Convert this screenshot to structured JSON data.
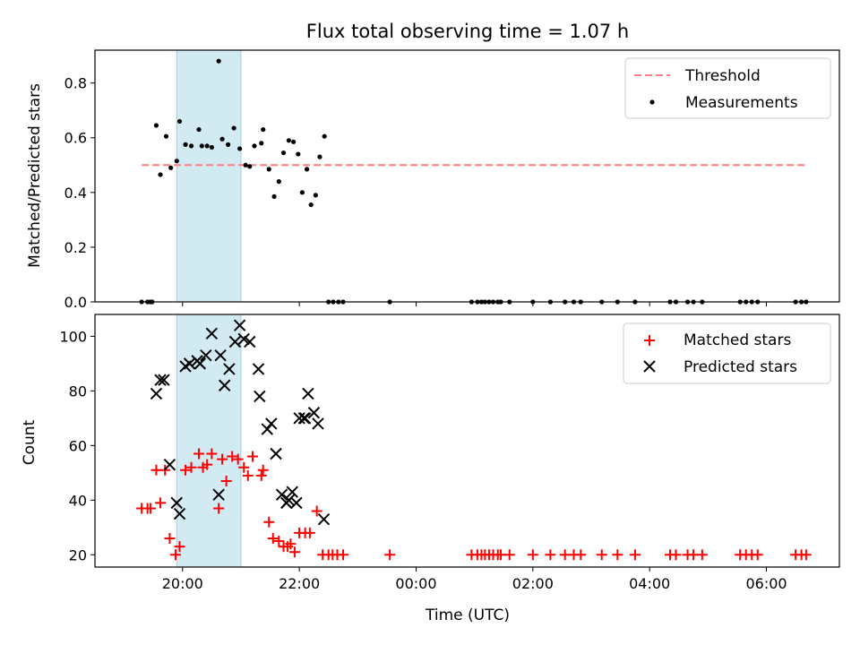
{
  "chart_data": {
    "title": "Flux total observing time = 1.07 h",
    "xlabel": "Time (UTC)",
    "x_ticks": [
      "20:00",
      "22:00",
      "00:00",
      "02:00",
      "04:00",
      "06:00"
    ],
    "x_tick_hours": [
      20,
      22,
      24,
      26,
      28,
      30
    ],
    "xlim_hours": [
      18.5,
      31.25
    ],
    "shaded_interval_hours": [
      19.9,
      21.0
    ],
    "shade_color": "#add8e6",
    "panels": [
      {
        "type": "scatter",
        "ylabel": "Matched/Predicted stars",
        "ylim": [
          0,
          0.92
        ],
        "y_ticks": [
          "0.0",
          "0.2",
          "0.4",
          "0.6",
          "0.8"
        ],
        "y_tick_values": [
          0,
          0.2,
          0.4,
          0.6,
          0.8
        ],
        "threshold": {
          "name": "Threshold",
          "value": 0.5,
          "color": "#ff7f7f",
          "from_hour": 19.3,
          "to_hour": 30.7
        },
        "legend": [
          "Threshold",
          "Measurements"
        ],
        "series": [
          {
            "name": "Measurements",
            "marker": "dot",
            "color": "#000000",
            "points": [
              [
                19.3,
                0
              ],
              [
                19.4,
                0
              ],
              [
                19.45,
                0
              ],
              [
                19.48,
                0
              ],
              [
                19.55,
                0.645
              ],
              [
                19.62,
                0.465
              ],
              [
                19.72,
                0.605
              ],
              [
                19.8,
                0.49
              ],
              [
                19.9,
                0.515
              ],
              [
                19.95,
                0.66
              ],
              [
                20.05,
                0.575
              ],
              [
                20.15,
                0.57
              ],
              [
                20.28,
                0.63
              ],
              [
                20.33,
                0.57
              ],
              [
                20.42,
                0.57
              ],
              [
                20.5,
                0.565
              ],
              [
                20.62,
                0.88
              ],
              [
                20.68,
                0.595
              ],
              [
                20.78,
                0.575
              ],
              [
                20.88,
                0.635
              ],
              [
                20.98,
                0.56
              ],
              [
                21.08,
                0.5
              ],
              [
                21.15,
                0.495
              ],
              [
                21.23,
                0.57
              ],
              [
                21.35,
                0.58
              ],
              [
                21.38,
                0.63
              ],
              [
                21.48,
                0.485
              ],
              [
                21.57,
                0.385
              ],
              [
                21.65,
                0.44
              ],
              [
                21.73,
                0.545
              ],
              [
                21.82,
                0.59
              ],
              [
                21.9,
                0.585
              ],
              [
                21.98,
                0.54
              ],
              [
                22.05,
                0.4
              ],
              [
                22.13,
                0.485
              ],
              [
                22.2,
                0.355
              ],
              [
                22.28,
                0.39
              ],
              [
                22.35,
                0.53
              ],
              [
                22.43,
                0.605
              ],
              [
                22.5,
                0
              ],
              [
                22.58,
                0
              ],
              [
                22.67,
                0
              ],
              [
                22.75,
                0
              ],
              [
                23.55,
                0
              ],
              [
                24.95,
                0
              ],
              [
                25.05,
                0
              ],
              [
                25.12,
                0
              ],
              [
                25.18,
                0
              ],
              [
                25.25,
                0
              ],
              [
                25.32,
                0
              ],
              [
                25.4,
                0
              ],
              [
                25.45,
                0
              ],
              [
                25.6,
                0
              ],
              [
                26.0,
                0
              ],
              [
                26.3,
                0
              ],
              [
                26.55,
                0
              ],
              [
                26.7,
                0
              ],
              [
                26.82,
                0
              ],
              [
                27.18,
                0
              ],
              [
                27.45,
                0
              ],
              [
                27.75,
                0
              ],
              [
                28.35,
                0
              ],
              [
                28.45,
                0
              ],
              [
                28.65,
                0
              ],
              [
                28.75,
                0
              ],
              [
                28.9,
                0
              ],
              [
                29.55,
                0
              ],
              [
                29.65,
                0
              ],
              [
                29.75,
                0
              ],
              [
                29.85,
                0
              ],
              [
                30.5,
                0
              ],
              [
                30.6,
                0
              ],
              [
                30.68,
                0
              ]
            ]
          }
        ]
      },
      {
        "type": "scatter",
        "ylabel": "Count",
        "ylim": [
          15.5,
          108
        ],
        "y_ticks": [
          "20",
          "40",
          "60",
          "80",
          "100"
        ],
        "y_tick_values": [
          20,
          40,
          60,
          80,
          100
        ],
        "legend": [
          "Matched stars",
          "Predicted stars"
        ],
        "series": [
          {
            "name": "Matched stars",
            "marker": "plus",
            "color": "#ff0000",
            "points": [
              [
                19.3,
                37
              ],
              [
                19.4,
                37
              ],
              [
                19.45,
                37
              ],
              [
                19.55,
                51
              ],
              [
                19.62,
                39
              ],
              [
                19.7,
                51
              ],
              [
                19.78,
                26
              ],
              [
                19.88,
                20
              ],
              [
                19.95,
                23
              ],
              [
                20.05,
                51
              ],
              [
                20.15,
                52
              ],
              [
                20.28,
                57
              ],
              [
                20.35,
                52
              ],
              [
                20.42,
                53
              ],
              [
                20.5,
                57
              ],
              [
                20.62,
                37
              ],
              [
                20.68,
                55
              ],
              [
                20.75,
                47
              ],
              [
                20.85,
                56
              ],
              [
                20.95,
                55
              ],
              [
                21.05,
                52
              ],
              [
                21.12,
                49
              ],
              [
                21.2,
                56
              ],
              [
                21.35,
                49
              ],
              [
                21.38,
                51
              ],
              [
                21.48,
                32
              ],
              [
                21.55,
                26
              ],
              [
                21.65,
                25
              ],
              [
                21.73,
                23
              ],
              [
                21.8,
                23
              ],
              [
                21.85,
                24
              ],
              [
                21.92,
                21
              ],
              [
                22.0,
                28
              ],
              [
                22.1,
                28
              ],
              [
                22.18,
                28
              ],
              [
                22.3,
                36
              ],
              [
                22.4,
                20
              ],
              [
                22.5,
                20
              ],
              [
                22.57,
                20
              ],
              [
                22.65,
                20
              ],
              [
                22.75,
                20
              ],
              [
                23.55,
                20
              ],
              [
                24.95,
                20
              ],
              [
                25.05,
                20
              ],
              [
                25.12,
                20
              ],
              [
                25.18,
                20
              ],
              [
                25.25,
                20
              ],
              [
                25.32,
                20
              ],
              [
                25.4,
                20
              ],
              [
                25.45,
                20
              ],
              [
                25.6,
                20
              ],
              [
                26.0,
                20
              ],
              [
                26.3,
                20
              ],
              [
                26.55,
                20
              ],
              [
                26.7,
                20
              ],
              [
                26.82,
                20
              ],
              [
                27.18,
                20
              ],
              [
                27.45,
                20
              ],
              [
                27.75,
                20
              ],
              [
                28.35,
                20
              ],
              [
                28.45,
                20
              ],
              [
                28.65,
                20
              ],
              [
                28.75,
                20
              ],
              [
                28.9,
                20
              ],
              [
                29.55,
                20
              ],
              [
                29.65,
                20
              ],
              [
                29.75,
                20
              ],
              [
                29.85,
                20
              ],
              [
                30.5,
                20
              ],
              [
                30.6,
                20
              ],
              [
                30.68,
                20
              ]
            ]
          },
          {
            "name": "Predicted stars",
            "marker": "x",
            "color": "#000000",
            "points": [
              [
                19.55,
                79
              ],
              [
                19.62,
                84
              ],
              [
                19.68,
                84
              ],
              [
                19.78,
                53
              ],
              [
                19.9,
                39
              ],
              [
                19.95,
                35
              ],
              [
                20.05,
                89
              ],
              [
                20.12,
                90
              ],
              [
                20.25,
                91
              ],
              [
                20.3,
                90
              ],
              [
                20.4,
                93
              ],
              [
                20.5,
                101
              ],
              [
                20.62,
                42
              ],
              [
                20.65,
                93
              ],
              [
                20.72,
                82
              ],
              [
                20.8,
                88
              ],
              [
                20.9,
                98
              ],
              [
                20.98,
                104
              ],
              [
                21.05,
                99
              ],
              [
                21.15,
                98
              ],
              [
                21.3,
                88
              ],
              [
                21.32,
                78
              ],
              [
                21.45,
                66
              ],
              [
                21.52,
                68
              ],
              [
                21.6,
                57
              ],
              [
                21.7,
                42
              ],
              [
                21.78,
                39
              ],
              [
                21.82,
                40
              ],
              [
                21.88,
                43
              ],
              [
                21.95,
                39
              ],
              [
                22.0,
                70
              ],
              [
                22.08,
                70
              ],
              [
                22.1,
                70
              ],
              [
                22.15,
                79
              ],
              [
                22.25,
                72
              ],
              [
                22.32,
                68
              ],
              [
                22.42,
                33
              ]
            ]
          }
        ]
      }
    ]
  }
}
